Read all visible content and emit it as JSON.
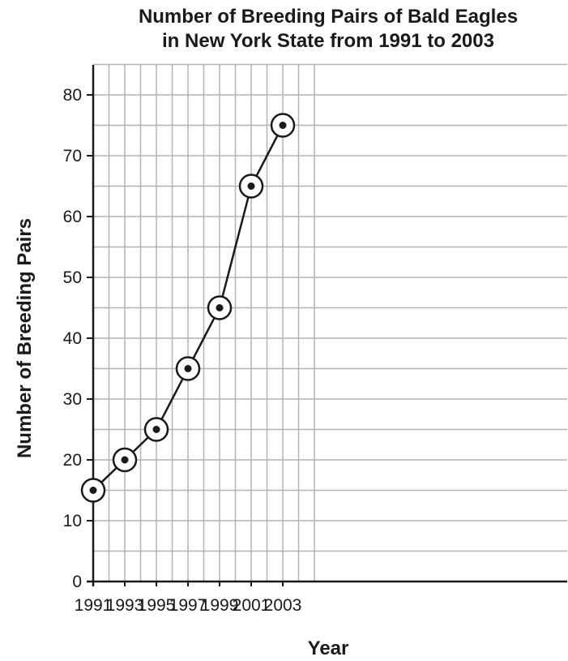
{
  "chart_data": {
    "type": "line",
    "title_lines": [
      "Number of Breeding Pairs of Bald Eagles",
      "in New York State from 1991 to 2003"
    ],
    "xlabel": "Year",
    "ylabel": "Number of Breeding Pairs",
    "x": [
      1991,
      1993,
      1995,
      1997,
      1999,
      2001,
      2003
    ],
    "y": [
      15,
      20,
      25,
      35,
      45,
      65,
      75
    ],
    "xlim": [
      1991,
      2006
    ],
    "ylim": [
      0,
      80
    ],
    "x_ticks": [
      "1991",
      "1993",
      "1995",
      "1997",
      "1999",
      "2001",
      "2003"
    ],
    "y_ticks": [
      "0",
      "10",
      "20",
      "30",
      "40",
      "50",
      "60",
      "70",
      "80"
    ],
    "grid": true,
    "marker": "circled-dot",
    "line_color": "#1a1a1a",
    "grid_color": "#b3b3b3"
  }
}
